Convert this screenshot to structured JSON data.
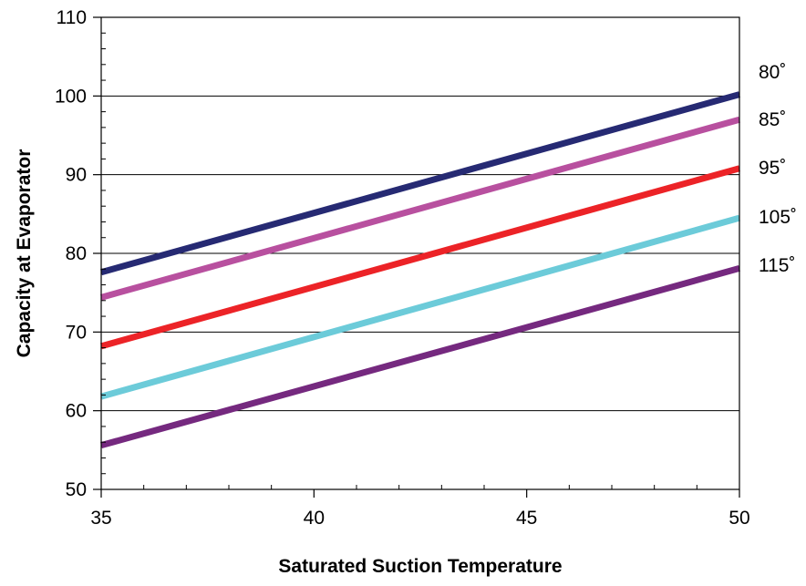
{
  "chart_data": {
    "type": "line",
    "title": "",
    "xlabel": "Saturated Suction Temperature",
    "ylabel": "Capacity at Evaporator",
    "xlim": [
      35,
      50
    ],
    "ylim": [
      50,
      110
    ],
    "xticks": [
      35,
      40,
      45,
      50
    ],
    "yticks": [
      50,
      60,
      70,
      80,
      90,
      100,
      110
    ],
    "x_minor_step": 1,
    "y_minor_step": 2,
    "grid": "horizontal major",
    "legend": "series labels right of plot",
    "series": [
      {
        "name": "80˚",
        "color": "#262a73",
        "x": [
          35,
          50
        ],
        "y": [
          77.6,
          100.2
        ]
      },
      {
        "name": "85˚",
        "color": "#b8509f",
        "x": [
          35,
          50
        ],
        "y": [
          74.4,
          97.0
        ]
      },
      {
        "name": "95˚",
        "color": "#ec2327",
        "x": [
          35,
          50
        ],
        "y": [
          68.2,
          90.8
        ]
      },
      {
        "name": "105˚",
        "color": "#6ccbd9",
        "x": [
          35,
          50
        ],
        "y": [
          61.8,
          84.5
        ]
      },
      {
        "name": "115˚",
        "color": "#75297f",
        "x": [
          35,
          50
        ],
        "y": [
          55.6,
          78.1
        ]
      }
    ]
  }
}
